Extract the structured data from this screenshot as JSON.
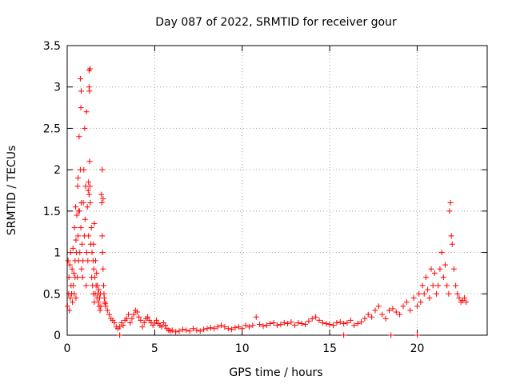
{
  "chart_data": {
    "type": "scatter",
    "title": "Day 087 of 2022, SRMTID for receiver gour",
    "xlabel": "GPS time / hours",
    "ylabel": "SRMTID / TECUs",
    "xlim": [
      0,
      24
    ],
    "ylim": [
      0,
      3.5
    ],
    "xticks": [
      0,
      5,
      10,
      15,
      20
    ],
    "yticks": [
      0,
      0.5,
      1,
      1.5,
      2,
      2.5,
      3,
      3.5
    ],
    "xtick_labels": [
      "0",
      "5",
      "10",
      "15",
      "20"
    ],
    "ytick_labels": [
      "0",
      "0.5",
      "1",
      "1.5",
      "2",
      "2.5",
      "3",
      "3.5"
    ],
    "grid": true,
    "marker": "+",
    "color": "#ff0000",
    "series": [
      {
        "name": "SRMTID",
        "x": [
          0.02,
          0.05,
          0.08,
          0.1,
          0.12,
          0.15,
          0.18,
          0.2,
          0.22,
          0.25,
          0.28,
          0.3,
          0.33,
          0.35,
          0.38,
          0.4,
          0.42,
          0.45,
          0.48,
          0.5,
          0.52,
          0.55,
          0.58,
          0.6,
          0.62,
          0.65,
          0.68,
          0.7,
          0.72,
          0.75,
          0.78,
          0.8,
          0.82,
          0.85,
          0.88,
          0.9,
          0.92,
          0.95,
          0.98,
          1.0,
          1.02,
          1.05,
          1.08,
          1.1,
          1.12,
          1.15,
          1.18,
          1.2,
          1.22,
          1.25,
          1.25,
          1.27,
          1.3,
          1.3,
          1.32,
          1.35,
          1.38,
          1.4,
          1.42,
          1.45,
          1.48,
          1.5,
          1.52,
          1.55,
          1.58,
          1.6,
          1.62,
          1.65,
          1.68,
          1.7,
          1.72,
          1.75,
          1.78,
          1.8,
          1.82,
          1.85,
          1.88,
          1.9,
          1.92,
          1.95,
          1.98,
          2.0,
          2.02,
          2.05,
          2.08,
          2.1,
          2.12,
          2.15,
          2.18,
          2.2,
          2.3,
          2.4,
          2.5,
          2.6,
          2.7,
          2.8,
          2.9,
          3.0,
          3.1,
          3.2,
          3.3,
          3.4,
          3.5,
          3.6,
          3.7,
          3.8,
          3.9,
          4.0,
          4.1,
          4.2,
          4.3,
          4.4,
          4.5,
          4.6,
          4.7,
          4.8,
          4.9,
          5.0,
          5.1,
          5.2,
          5.3,
          5.4,
          5.5,
          5.6,
          5.7,
          5.8,
          5.9,
          6.0,
          6.2,
          6.4,
          6.6,
          6.8,
          7.0,
          7.2,
          7.4,
          7.6,
          7.8,
          8.0,
          8.2,
          8.4,
          8.6,
          8.8,
          9.0,
          9.2,
          9.4,
          9.6,
          9.8,
          10.0,
          10.2,
          10.4,
          10.6,
          10.8,
          11.0,
          11.2,
          11.4,
          11.6,
          11.8,
          12.0,
          12.2,
          12.4,
          12.6,
          12.8,
          13.0,
          13.2,
          13.4,
          13.6,
          13.8,
          14.0,
          14.2,
          14.4,
          14.6,
          14.8,
          15.0,
          15.2,
          15.4,
          15.6,
          15.8,
          16.0,
          16.2,
          16.4,
          16.6,
          16.8,
          17.0,
          17.2,
          17.4,
          17.6,
          17.8,
          18.0,
          18.2,
          18.4,
          18.6,
          18.8,
          19.0,
          19.2,
          19.4,
          19.6,
          19.8,
          20.0,
          20.1,
          20.2,
          20.3,
          20.4,
          20.5,
          20.6,
          20.7,
          20.8,
          20.9,
          21.0,
          21.1,
          21.2,
          21.3,
          21.4,
          21.5,
          21.6,
          21.7,
          21.8,
          21.85,
          21.9,
          21.95,
          22.0,
          22.1,
          22.2,
          22.3,
          22.4,
          22.5,
          22.6,
          22.7,
          22.8,
          0.75,
          0.78,
          0.8,
          1.22,
          1.25,
          1.28,
          0.62,
          0.65,
          2.0,
          2.05,
          1.5,
          1.55,
          0.45,
          0.5,
          15.8,
          20.0,
          18.5,
          3.0
        ],
        "y": [
          0.35,
          0.9,
          0.5,
          0.7,
          0.3,
          0.85,
          0.45,
          1.0,
          0.6,
          0.5,
          0.8,
          0.4,
          1.05,
          0.6,
          0.75,
          0.5,
          1.3,
          0.9,
          1.55,
          1.15,
          1.0,
          1.45,
          0.7,
          1.8,
          1.2,
          0.9,
          2.4,
          1.5,
          1.0,
          2.0,
          1.3,
          1.6,
          0.8,
          1.1,
          0.7,
          0.9,
          1.6,
          2.0,
          1.2,
          2.5,
          1.4,
          1.8,
          0.6,
          2.7,
          1.0,
          1.55,
          0.9,
          1.75,
          1.2,
          3.0,
          3.2,
          2.95,
          1.8,
          3.22,
          1.6,
          1.1,
          1.3,
          0.7,
          1.0,
          0.6,
          0.9,
          0.5,
          0.8,
          0.4,
          0.7,
          0.5,
          0.9,
          0.6,
          0.75,
          0.45,
          0.6,
          0.5,
          0.4,
          0.55,
          0.35,
          0.45,
          0.3,
          0.5,
          0.35,
          1.7,
          1.6,
          1.2,
          1.0,
          0.8,
          0.6,
          0.5,
          0.45,
          0.4,
          0.38,
          0.35,
          0.3,
          0.25,
          0.2,
          0.18,
          0.15,
          0.1,
          0.08,
          0.1,
          0.15,
          0.12,
          0.18,
          0.2,
          0.25,
          0.15,
          0.2,
          0.25,
          0.3,
          0.28,
          0.22,
          0.18,
          0.1,
          0.15,
          0.2,
          0.22,
          0.18,
          0.15,
          0.12,
          0.15,
          0.18,
          0.14,
          0.12,
          0.1,
          0.15,
          0.12,
          0.08,
          0.06,
          0.05,
          0.06,
          0.04,
          0.05,
          0.07,
          0.06,
          0.05,
          0.08,
          0.06,
          0.05,
          0.07,
          0.08,
          0.09,
          0.08,
          0.1,
          0.12,
          0.1,
          0.08,
          0.07,
          0.09,
          0.1,
          0.08,
          0.12,
          0.1,
          0.12,
          0.22,
          0.13,
          0.11,
          0.12,
          0.14,
          0.15,
          0.12,
          0.13,
          0.15,
          0.14,
          0.16,
          0.12,
          0.15,
          0.14,
          0.13,
          0.17,
          0.2,
          0.22,
          0.18,
          0.15,
          0.14,
          0.13,
          0.12,
          0.15,
          0.16,
          0.14,
          0.15,
          0.18,
          0.12,
          0.14,
          0.16,
          0.2,
          0.25,
          0.22,
          0.3,
          0.35,
          0.25,
          0.2,
          0.3,
          0.32,
          0.28,
          0.25,
          0.35,
          0.4,
          0.3,
          0.45,
          0.35,
          0.5,
          0.4,
          0.6,
          0.5,
          0.7,
          0.55,
          0.45,
          0.8,
          0.6,
          0.75,
          0.5,
          0.6,
          0.8,
          1.0,
          0.7,
          0.85,
          0.6,
          0.5,
          1.5,
          1.6,
          1.2,
          1.1,
          0.8,
          0.6,
          0.5,
          0.45,
          0.4,
          0.42,
          0.45,
          0.4,
          3.1,
          2.75,
          2.95,
          1.85,
          1.7,
          2.1,
          1.9,
          1.5,
          2.0,
          1.65,
          1.1,
          1.35,
          0.7,
          0.45,
          0.0,
          0.0,
          0.0,
          0.0
        ]
      }
    ]
  }
}
